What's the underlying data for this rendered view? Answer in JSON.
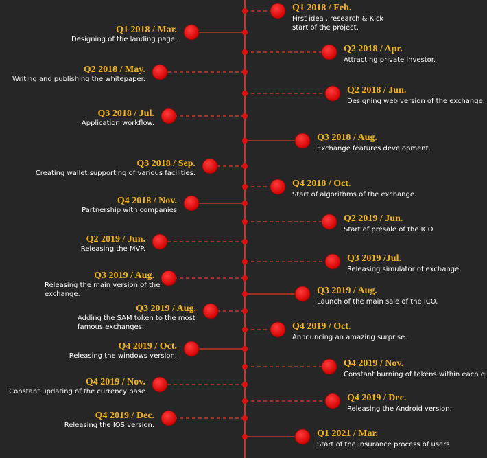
{
  "right": [
    {
      "title": "Q1 2018 / Feb.",
      "lines": [
        "First idea , research & Kick",
        "start of  the project."
      ]
    },
    {
      "title": "Q2 2018 / Apr.",
      "lines": [
        "Attracting private investor."
      ]
    },
    {
      "title": "Q2 2018 / Jun.",
      "lines": [
        "Designing web version of the exchange."
      ]
    },
    {
      "title": "Q3 2018 / Aug.",
      "lines": [
        "Exchange features development."
      ]
    },
    {
      "title": "Q4 2018 / Oct.",
      "lines": [
        "Start of algorithms of the exchange."
      ]
    },
    {
      "title": "Q2 2019 / Jun.",
      "lines": [
        "Start of presale of the ICO"
      ]
    },
    {
      "title": "Q3 2019 /Jul.",
      "lines": [
        "Releasing simulator of exchange."
      ]
    },
    {
      "title": "Q3 2019 / Aug.",
      "lines": [
        "Launch of the main sale of the ICO."
      ]
    },
    {
      "title": "Q4 2019 / Oct.",
      "lines": [
        "Announcing an amazing surprise."
      ]
    },
    {
      "title": "Q4 2019 / Nov.",
      "lines": [
        "Constant burning of tokens within each qua"
      ]
    },
    {
      "title": "Q4 2019 / Dec.",
      "lines": [
        "Releasing the Android version."
      ]
    },
    {
      "title": "Q1 2021 / Mar.",
      "lines": [
        "Start of the insurance process of users"
      ]
    }
  ],
  "left": [
    {
      "title": "Q1 2018 / Mar.",
      "lines": [
        "Designing of the landing page."
      ]
    },
    {
      "title": "Q2 2018 / May.",
      "lines": [
        "Writing and publishing the whitepaper."
      ]
    },
    {
      "title": "Q3 2018 / Jul.",
      "lines": [
        "Application workflow."
      ]
    },
    {
      "title": "Q3 2018 / Sep.",
      "lines": [
        "Creating wallet supporting of various facilities."
      ]
    },
    {
      "title": "Q4 2018 / Nov.",
      "lines": [
        "Partnership with companies"
      ]
    },
    {
      "title": "Q2 2019 / Jun.",
      "lines": [
        "Releasing the MVP."
      ]
    },
    {
      "title": "Q3 2019 / Aug.",
      "lines": [
        "Releasing the main version of the",
        "exchange."
      ]
    },
    {
      "title": "Q3 2019 / Aug.",
      "lines": [
        "Adding the SAM token to the most",
        "famous exchanges."
      ]
    },
    {
      "title": "Q4 2019 / Oct.",
      "lines": [
        "Releasing the windows version."
      ]
    },
    {
      "title": "Q4 2019 / Nov.",
      "lines": [
        "Constant updating of the currency base"
      ]
    },
    {
      "title": "Q4 2019 / Dec.",
      "lines": [
        "Releasing the IOS version."
      ]
    }
  ]
}
